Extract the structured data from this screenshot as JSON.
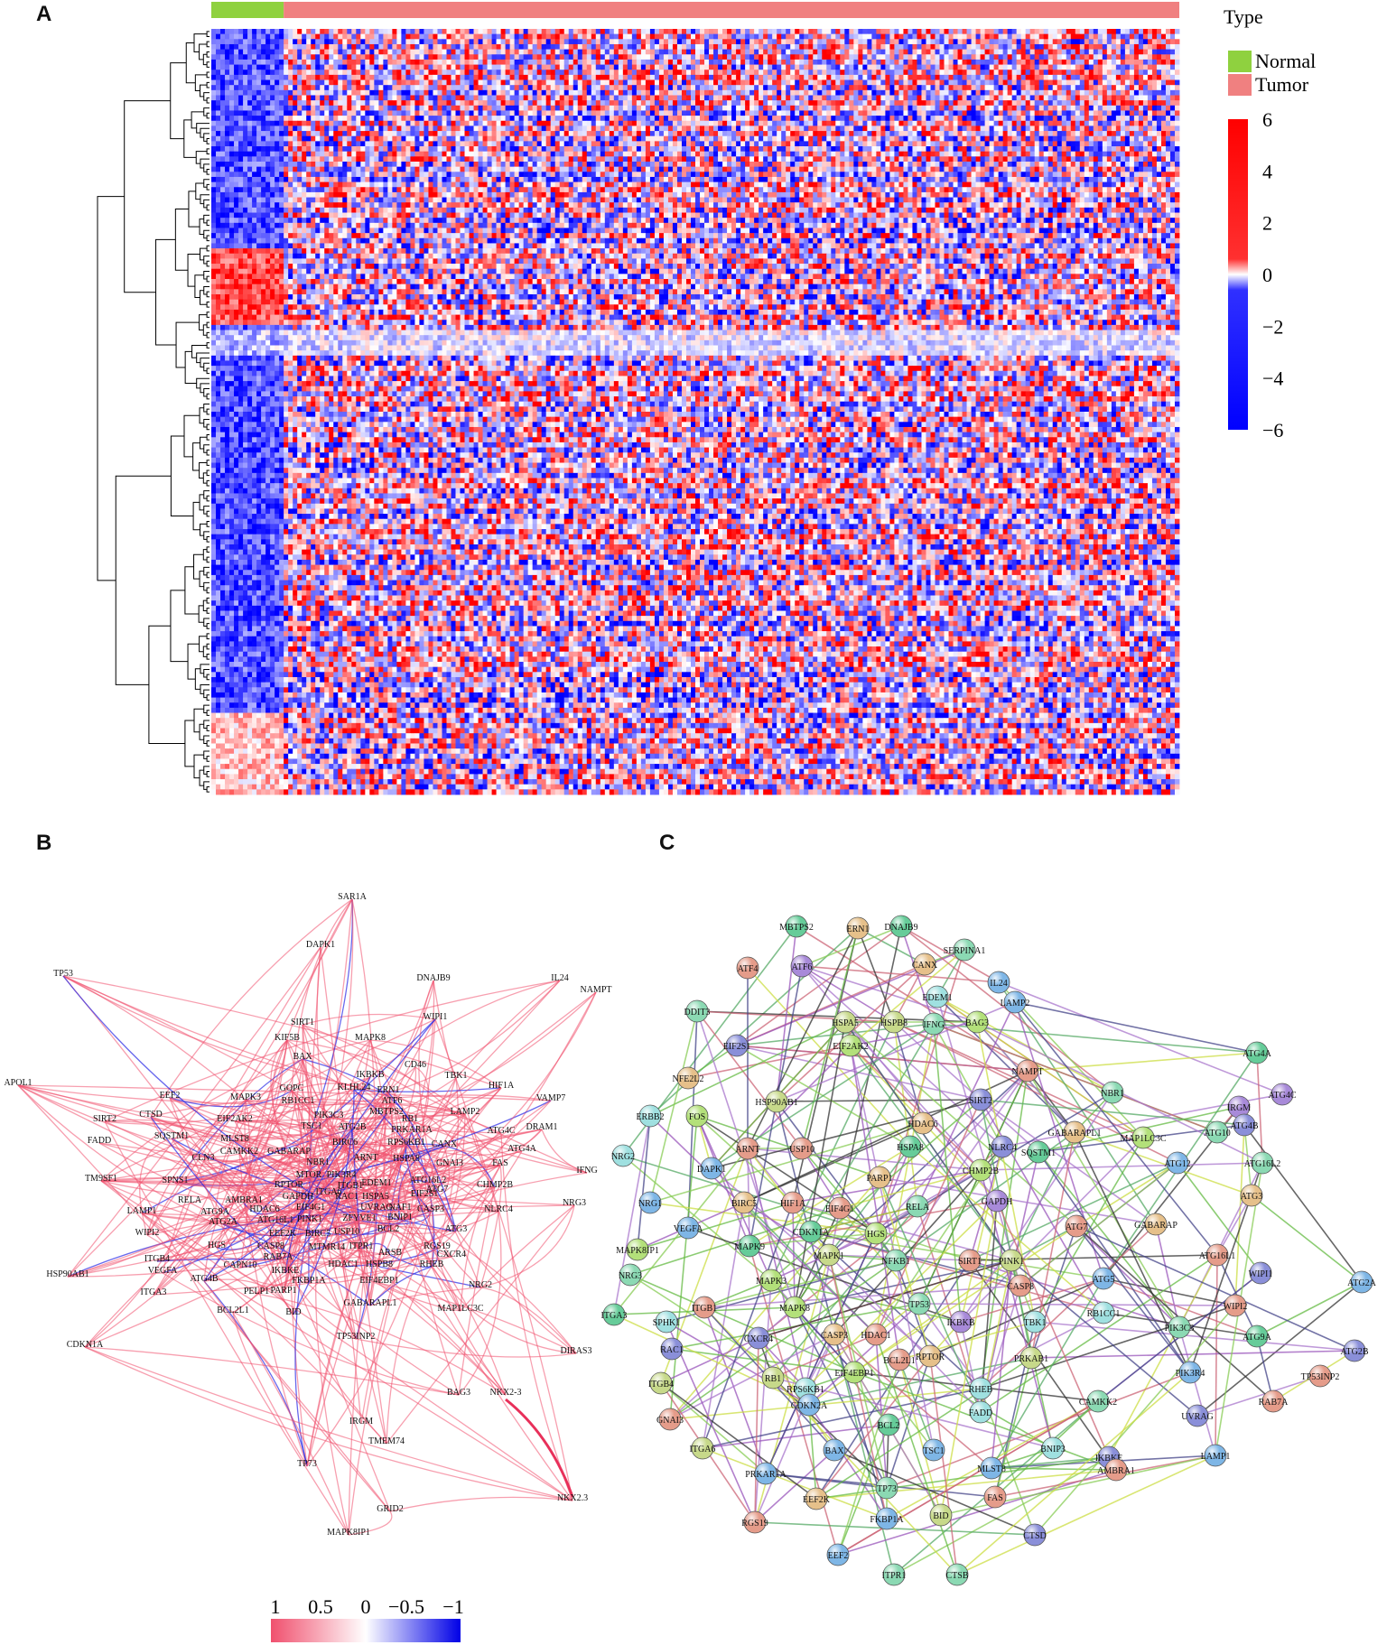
{
  "panels": {
    "a": "A",
    "b": "B",
    "c": "C"
  },
  "heatmap": {
    "legend_title": "Type",
    "groups": [
      {
        "name": "Normal",
        "color": "#8fd13f"
      },
      {
        "name": "Tumor",
        "color": "#f08080"
      }
    ],
    "colorbar_ticks": [
      6,
      4,
      2,
      0,
      -2,
      -4,
      -6
    ],
    "colorbar_tick_labels": [
      "6",
      "4",
      "2",
      "0",
      "−2",
      "−4",
      "−6"
    ],
    "colors": {
      "high": "#ff0000",
      "mid": "#ffffff",
      "low": "#0000ff"
    }
  },
  "correlation_network": {
    "nodes": [
      "SAR1A",
      "DAPK1",
      "TP53",
      "DNAJB9",
      "IL24",
      "NAMPT",
      "WIPI1",
      "SIRT1",
      "KIF5B",
      "MAPK8",
      "APOL1",
      "CD46",
      "BAX",
      "IKBKB",
      "TBK1",
      "EEF2",
      "MAPK3",
      "GOPC",
      "KLHL24",
      "ERN1",
      "HIF1A",
      "VAMP7",
      "RB1CC1",
      "ATF6",
      "MBTPS2",
      "LAMP2",
      "DRAM1",
      "SIRT2",
      "CTSD",
      "EIF2AK2",
      "PIK3C3",
      "TSC1",
      "ATG2B",
      "RB1",
      "PRKAR1A",
      "ATG4C",
      "FADD",
      "SQSTM1",
      "MLST8",
      "CAMKK2",
      "GABARAP",
      "BIRC6",
      "ARNT",
      "RPS6KB1",
      "CANX",
      "GNAI3",
      "FAS",
      "ATG4A",
      "CLN3",
      "NBR1",
      "PIK3R4",
      "ITGB1",
      "EDEM1",
      "HSPA8",
      "ATG16L2",
      "IFNG",
      "TM9SF1",
      "SPNS1",
      "RPTOR",
      "MTOR",
      "RAC1",
      "EIF2S1",
      "ATG7",
      "CHMP2B",
      "NRG3",
      "RELA",
      "AMBRA1",
      "GAPDH",
      "ITGA6",
      "HSPA5",
      "CASP3",
      "NLRC4",
      "LAMP1",
      "ATG9A",
      "HDAC6",
      "EIF4G1",
      "UVRAG",
      "NAF1",
      "BNIP1",
      "ATG2A",
      "ATG16L1",
      "PINK1",
      "ZFYVE1",
      "BCL2",
      "ATG3",
      "WIPI2",
      "HGS",
      "CASP8",
      "EEF2K",
      "BIRC5",
      "USP10",
      "RGS19",
      "CXCR4",
      "ITGB4",
      "RAB7A",
      "MTMR14",
      "ITPR1",
      "ARSB",
      "HSP90AB1",
      "VEGFA",
      "CAPN10",
      "IKBKE",
      "HDAC1",
      "HSPB8",
      "RHEB",
      "ATG4B",
      "FKBP1A",
      "EIF4EBP1",
      "NRG2",
      "ITGA3",
      "PELP1",
      "PARP1",
      "GABARAPL1",
      "BCL2L1",
      "BID",
      "MAP1LC3C",
      "CDKN1A",
      "TP53INP2",
      "DIRAS3",
      "BAG3",
      "NKX2-3",
      "IRGM",
      "TMEM74",
      "TP73",
      "NKX2.3",
      "GRID2",
      "MAPK8IP1"
    ],
    "scale_labels": [
      "1",
      "0.5",
      "0",
      "−0.5",
      "−1"
    ],
    "colors": {
      "positive": "#f0506e",
      "negative": "#2828e6"
    }
  },
  "ppi_network": {
    "nodes": [
      "MBTPS2",
      "ERN1",
      "DNAJB9",
      "ATF4",
      "ATF6",
      "CANX",
      "SERPINA1",
      "EDEM1",
      "IL24",
      "DDIT3",
      "HSPA5",
      "HSPB8",
      "IFNG",
      "BAG3",
      "LAMP2",
      "EIF2S1",
      "EIF2AK2",
      "NFE2L2",
      "NAMPT",
      "SIRT2",
      "ATG4A",
      "HSP90AB1",
      "HDAC6",
      "NBR1",
      "IRGM",
      "ATG4C",
      "ERBB2",
      "FOS",
      "NLRC4",
      "GABARAPL1",
      "MAP1LC3C",
      "ATG10",
      "ATG4B",
      "ARNT",
      "USP10",
      "HSPA8",
      "SQSTM1",
      "NRG2",
      "DAPK1",
      "CHMP2B",
      "ATG12",
      "ATG16L2",
      "PARP1",
      "NRG1",
      "BIRC5",
      "HIF1A",
      "EIF4G1",
      "RELA",
      "GAPDH",
      "ATG3",
      "VEGFA",
      "CDKN1A",
      "HGS",
      "ATG7",
      "GABARAP",
      "MAPK8IP1",
      "MAPK9",
      "MAPK1",
      "NFKB1",
      "SIRT1",
      "PINK1",
      "ATG5",
      "ATG16L1",
      "ATG2A",
      "NRG3",
      "MAPK3",
      "CASP8",
      "WIPI1",
      "ITGB1",
      "MAPK8",
      "TP53",
      "IKBKB",
      "TBK1",
      "RB1CC1",
      "WIPI2",
      "ITGA3",
      "SPHK1",
      "CASP3",
      "HDAC1",
      "PIK3C3",
      "ATG9A",
      "RAC1",
      "CXCR4",
      "RPTOR",
      "PRKAB1",
      "ATG2B",
      "BCL2L1",
      "PIK3R4",
      "TP53INP2",
      "ITGB4",
      "RB1",
      "EIF4EBP1",
      "RHEB",
      "RPS6KB1",
      "CDKN2A",
      "FADD",
      "CAMKK2",
      "RAB7A",
      "GNAI3",
      "BCL2",
      "UVRAG",
      "ITGA6",
      "BNIP3",
      "LAMP1",
      "BAX",
      "TSC1",
      "MLST8",
      "IKBKE",
      "PRKAR1A",
      "AMBRA1",
      "EEF2K",
      "TP73",
      "FAS",
      "RGS19",
      "FKBP1A",
      "BID",
      "CTSD",
      "EEF2",
      "ITPR1",
      "CTSB"
    ]
  }
}
